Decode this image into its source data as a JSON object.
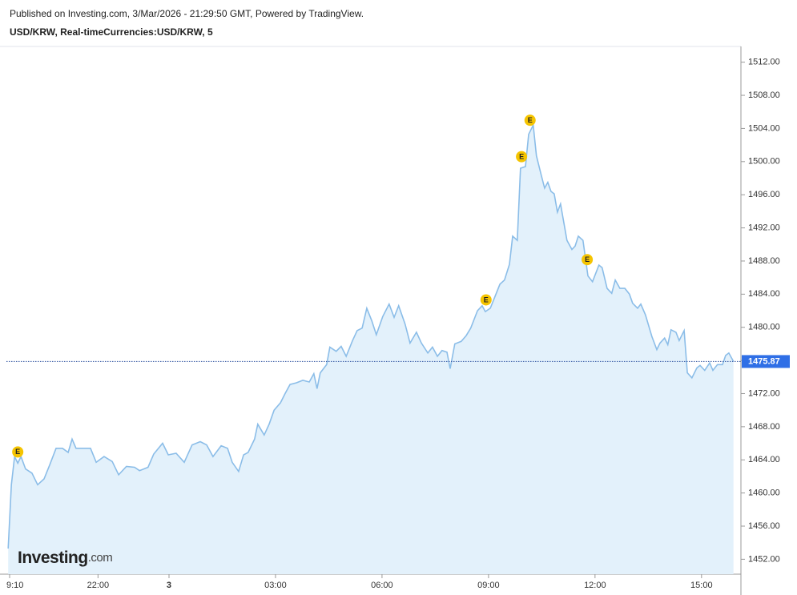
{
  "chart_data": {
    "type": "area",
    "published": "Published on Investing.com, 3/Mar/2026 - 21:29:50 GMT, Powered by TradingView.",
    "title": "USD/KRW, Real-timeCurrencies:USD/KRW, 5",
    "logo": [
      "Investing",
      ".com"
    ],
    "x": [
      -4.53,
      -4.44,
      -4.35,
      -4.26,
      -4.17,
      -4.04,
      -3.86,
      -3.7,
      -3.52,
      -3.36,
      -3.18,
      -3.0,
      -2.84,
      -2.73,
      -2.62,
      -2.39,
      -2.21,
      -2.05,
      -1.83,
      -1.6,
      -1.42,
      -1.2,
      -0.97,
      -0.83,
      -0.59,
      -0.43,
      -0.18,
      -0.02,
      0.2,
      0.43,
      0.65,
      0.88,
      1.06,
      1.24,
      1.47,
      1.65,
      1.78,
      1.96,
      2.1,
      2.23,
      2.41,
      2.5,
      2.68,
      2.82,
      2.96,
      3.14,
      3.27,
      3.41,
      3.59,
      3.77,
      3.95,
      4.08,
      4.17,
      4.26,
      4.44,
      4.53,
      4.71,
      4.85,
      4.99,
      5.17,
      5.3,
      5.44,
      5.57,
      5.71,
      5.84,
      6.02,
      6.2,
      6.34,
      6.47,
      6.65,
      6.79,
      6.97,
      7.11,
      7.29,
      7.42,
      7.56,
      7.69,
      7.83,
      7.92,
      8.05,
      8.23,
      8.37,
      8.5,
      8.69,
      8.82,
      8.91,
      9.05,
      9.18,
      9.32,
      9.45,
      9.59,
      9.68,
      9.81,
      9.9,
      10.04,
      10.13,
      10.26,
      10.35,
      10.49,
      10.58,
      10.67,
      10.76,
      10.85,
      10.94,
      11.03,
      11.21,
      11.35,
      11.44,
      11.53,
      11.66,
      11.8,
      11.93,
      12.11,
      12.2,
      12.34,
      12.47,
      12.57,
      12.7,
      12.84,
      12.97,
      13.06,
      13.2,
      13.29,
      13.42,
      13.6,
      13.74,
      13.83,
      13.96,
      14.05,
      14.14,
      14.28,
      14.37,
      14.51,
      14.6,
      14.73,
      14.87,
      14.96,
      15.09,
      15.23,
      15.32,
      15.45,
      15.59,
      15.68,
      15.77,
      15.9
    ],
    "series": [
      {
        "name": "USD/KRW",
        "color": "#8bbde8",
        "fill": "#e3f1fb",
        "values": [
          1453.3,
          1461.0,
          1464.4,
          1463.6,
          1464.4,
          1462.9,
          1462.4,
          1461.0,
          1461.7,
          1463.4,
          1465.4,
          1465.4,
          1464.9,
          1466.5,
          1465.4,
          1465.4,
          1465.4,
          1463.7,
          1464.4,
          1463.8,
          1462.2,
          1463.2,
          1463.1,
          1462.7,
          1463.1,
          1464.7,
          1466.0,
          1464.6,
          1464.8,
          1463.7,
          1465.8,
          1466.2,
          1465.8,
          1464.4,
          1465.7,
          1465.4,
          1463.7,
          1462.6,
          1464.6,
          1464.9,
          1466.5,
          1468.3,
          1467.0,
          1468.3,
          1470.0,
          1470.9,
          1472.0,
          1473.1,
          1473.3,
          1473.6,
          1473.4,
          1474.4,
          1472.6,
          1474.5,
          1475.5,
          1477.6,
          1477.1,
          1477.7,
          1476.5,
          1478.4,
          1479.6,
          1479.9,
          1482.3,
          1480.8,
          1479.1,
          1481.3,
          1482.8,
          1481.2,
          1482.6,
          1480.4,
          1478.1,
          1479.4,
          1478.1,
          1476.9,
          1477.6,
          1476.5,
          1477.2,
          1477.0,
          1475.0,
          1478.0,
          1478.3,
          1479.0,
          1479.9,
          1482.0,
          1482.6,
          1481.9,
          1482.3,
          1483.7,
          1485.2,
          1485.7,
          1487.6,
          1491.0,
          1490.5,
          1499.2,
          1499.4,
          1503.3,
          1504.4,
          1500.7,
          1498.3,
          1496.8,
          1497.5,
          1496.4,
          1496.1,
          1493.9,
          1494.9,
          1490.5,
          1489.4,
          1489.8,
          1491.0,
          1490.5,
          1486.2,
          1485.5,
          1487.5,
          1487.2,
          1484.7,
          1484.1,
          1485.7,
          1484.7,
          1484.7,
          1484.0,
          1482.9,
          1482.3,
          1482.8,
          1481.5,
          1478.9,
          1477.3,
          1478.1,
          1478.7,
          1477.9,
          1479.7,
          1479.4,
          1478.4,
          1479.6,
          1474.5,
          1473.9,
          1475.1,
          1475.4,
          1474.8,
          1475.7,
          1474.8,
          1475.5,
          1475.5,
          1476.6,
          1476.9,
          1475.87
        ]
      }
    ],
    "events": [
      {
        "x": -4.26,
        "label": "E"
      },
      {
        "x": 8.93,
        "label": "E"
      },
      {
        "x": 9.93,
        "label": "E"
      },
      {
        "x": 10.17,
        "label": "E"
      },
      {
        "x": 11.78,
        "label": "E"
      }
    ],
    "xlim": [
      -4.58,
      16.11
    ],
    "xticks": [
      {
        "value": -4.49,
        "label": "9:10"
      },
      {
        "value": -2,
        "label": "22:00"
      },
      {
        "value": 0,
        "label": "3"
      },
      {
        "value": 3,
        "label": "03:00"
      },
      {
        "value": 6,
        "label": "06:00"
      },
      {
        "value": 9,
        "label": "09:00"
      },
      {
        "value": 12,
        "label": "12:00"
      },
      {
        "value": 15,
        "label": "15:00"
      }
    ],
    "ylim": [
      1450.2,
      1513.9
    ],
    "yticks": [
      {
        "value": 1452,
        "label": "1452.00"
      },
      {
        "value": 1456,
        "label": "1456.00"
      },
      {
        "value": 1460,
        "label": "1460.00"
      },
      {
        "value": 1464,
        "label": "1464.00"
      },
      {
        "value": 1468,
        "label": "1468.00"
      },
      {
        "value": 1472,
        "label": "1472.00"
      },
      {
        "value": 1476,
        "label": "1476.00"
      },
      {
        "value": 1480,
        "label": "1480.00"
      },
      {
        "value": 1484,
        "label": "1484.00"
      },
      {
        "value": 1488,
        "label": "1488.00"
      },
      {
        "value": 1492,
        "label": "1492.00"
      },
      {
        "value": 1496,
        "label": "1496.00"
      },
      {
        "value": 1500,
        "label": "1500.00"
      },
      {
        "value": 1504,
        "label": "1504.00"
      },
      {
        "value": 1508,
        "label": "1508.00"
      },
      {
        "value": 1512,
        "label": "1512.00"
      }
    ],
    "grid": false
  }
}
